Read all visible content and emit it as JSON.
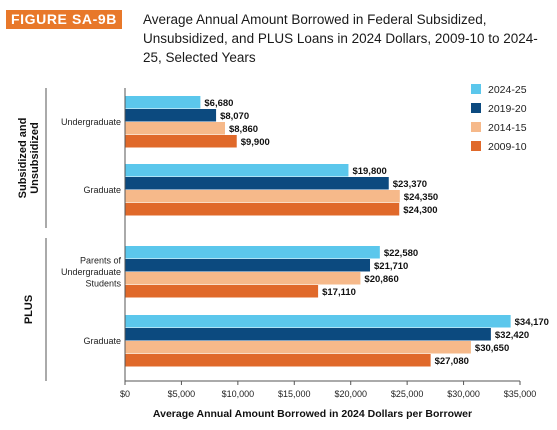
{
  "figure": {
    "label": "FIGURE SA-9B",
    "title": "Average Annual Amount Borrowed in Federal Subsidized, Unsubsidized, and PLUS Loans in 2024 Dollars, 2009-10 to 2024-25, Selected Years"
  },
  "chart_data": {
    "type": "bar",
    "orientation": "horizontal",
    "title": "Average Annual Amount Borrowed in Federal Subsidized, Unsubsidized, and PLUS Loans in 2024 Dollars, 2009-10 to 2024-25, Selected Years",
    "xlabel": "Average Annual Amount Borrowed in 2024 Dollars per Borrower",
    "ylabel": "",
    "xlim": [
      0,
      35000
    ],
    "x_ticks": [
      "$0",
      "$5,000",
      "$10,000",
      "$15,000",
      "$20,000",
      "$25,000",
      "$30,000",
      "$35,000"
    ],
    "grid": false,
    "legend_position": "top-right",
    "groups": [
      {
        "label_lines": [
          "Subsidized and",
          "Unsubsidized"
        ],
        "categories": [
          0,
          1
        ]
      },
      {
        "label_lines": [
          "PLUS"
        ],
        "categories": [
          2,
          3
        ]
      }
    ],
    "categories": [
      {
        "label_lines": [
          "Undergraduate"
        ]
      },
      {
        "label_lines": [
          "Graduate"
        ]
      },
      {
        "label_lines": [
          "Parents of",
          "Undergraduate",
          "Students"
        ]
      },
      {
        "label_lines": [
          "Graduate"
        ]
      }
    ],
    "series": [
      {
        "name": "2024-25",
        "color": "#5bc7ec",
        "values": [
          6680,
          19800,
          22580,
          34170
        ],
        "labels": [
          "$6,680",
          "$19,800",
          "$22,580",
          "$34,170"
        ]
      },
      {
        "name": "2019-20",
        "color": "#0c4a7f",
        "values": [
          8070,
          23370,
          21710,
          32420
        ],
        "labels": [
          "$8,070",
          "$23,370",
          "$21,710",
          "$32,420"
        ]
      },
      {
        "name": "2014-15",
        "color": "#f6b98a",
        "values": [
          8860,
          24350,
          20860,
          30650
        ],
        "labels": [
          "$8,860",
          "$24,350",
          "$20,860",
          "$30,650"
        ]
      },
      {
        "name": "2009-10",
        "color": "#e0692a",
        "values": [
          9900,
          24300,
          17110,
          27080
        ],
        "labels": [
          "$9,900",
          "$24,300",
          "$17,110",
          "$27,080"
        ]
      }
    ]
  }
}
